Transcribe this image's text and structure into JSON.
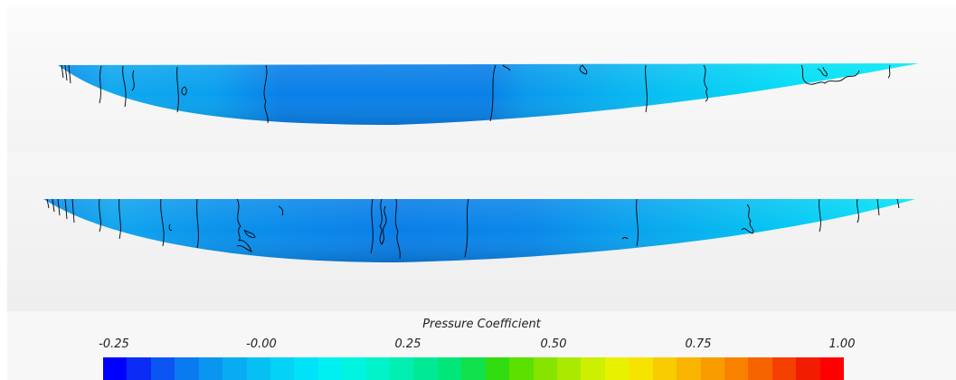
{
  "legend": {
    "title": "Pressure Coefficient",
    "ticks": [
      "-0.25",
      "-0.00",
      "0.25",
      "0.50",
      "0.75",
      "1.00"
    ],
    "range": [
      -0.25,
      1.0
    ],
    "colors": [
      "#0000ff",
      "#0a2cf5",
      "#0a55f2",
      "#0a7af0",
      "#0a96f0",
      "#08acf2",
      "#06c0f4",
      "#04d2f6",
      "#00e2f8",
      "#00f0f2",
      "#00f4e0",
      "#00f2c8",
      "#00eeb0",
      "#00ea96",
      "#00e678",
      "#10e04c",
      "#30dc10",
      "#5ce000",
      "#86e400",
      "#aaea00",
      "#ccf000",
      "#e8f200",
      "#f6e400",
      "#f8cc00",
      "#f8b400",
      "#f89c00",
      "#f88200",
      "#f66400",
      "#f44000",
      "#f21c00",
      "#ff0000"
    ]
  },
  "surfaces": [
    {
      "id": "upper-surface-view"
    },
    {
      "id": "lower-surface-view"
    }
  ]
}
